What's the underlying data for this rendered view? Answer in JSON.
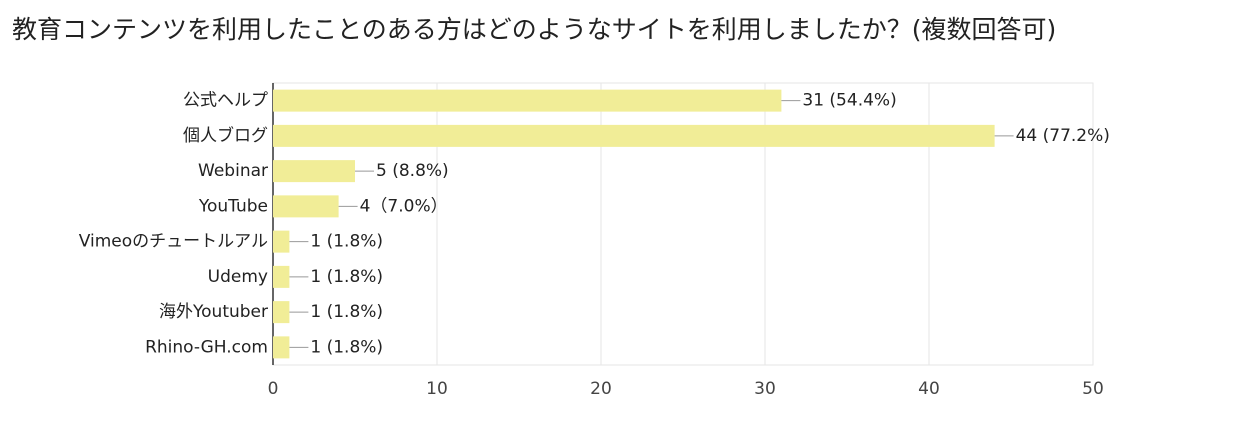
{
  "chart_data": {
    "type": "bar",
    "orientation": "horizontal",
    "title": "教育コンテンツを利用したことのある方はどのようなサイトを利用しましたか？(複数回答可)",
    "categories": [
      "公式ヘルプ",
      "個人ブログ",
      "Webinar",
      "YouTube",
      "Vimeoのチュートルアル",
      "Udemy",
      "海外Youtuber",
      "Rhino-GH.com"
    ],
    "values": [
      31,
      44,
      5,
      4,
      1,
      1,
      1,
      1
    ],
    "value_labels": [
      "31 (54.4%)",
      "44 (77.2%)",
      "5 (8.8%)",
      "4（7.0%）",
      "1 (1.8%)",
      "1 (1.8%)",
      "1 (1.8%)",
      "1 (1.8%)"
    ],
    "color": "#f1ed97",
    "xlim": [
      0,
      50
    ],
    "xticks": [
      0,
      10,
      20,
      30,
      40,
      50
    ],
    "grid": true
  }
}
